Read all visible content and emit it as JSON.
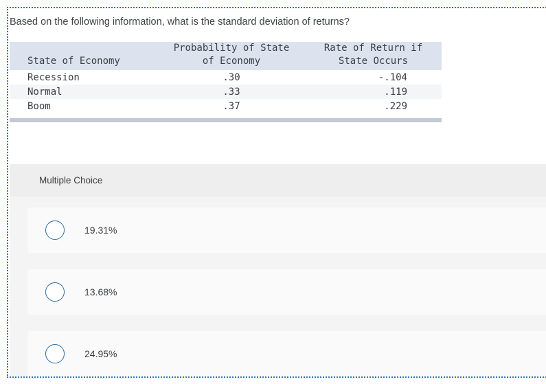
{
  "question": {
    "text": "Based on the following information, what is the standard deviation of returns?"
  },
  "table": {
    "headers": {
      "col1_line2": "State of Economy",
      "col2_line1": "Probability of State",
      "col2_line2": "of Economy",
      "col3_line1": "Rate of Return if",
      "col3_line2": "State Occurs"
    },
    "rows": [
      {
        "state": "Recession",
        "probability": ".30",
        "rate": "-.104"
      },
      {
        "state": "Normal",
        "probability": ".33",
        "rate": ".119"
      },
      {
        "state": "Boom",
        "probability": ".37",
        "rate": ".229"
      }
    ]
  },
  "multiple_choice": {
    "section_label": "Multiple Choice",
    "options": [
      {
        "label": "19.31%"
      },
      {
        "label": "13.68%"
      },
      {
        "label": "24.95%"
      }
    ]
  },
  "colors": {
    "frame_border": "#3a6fb0",
    "table_header_bg": "#dce3ef",
    "table_alt_row_bg": "#f4f5f7",
    "scrollbar": "#c2c9d5",
    "mc_band_bg": "#eeeeef",
    "mc_section_bg": "#f4f4f5",
    "option_box_bg": "#fafafa",
    "radio_border": "#2d6da4"
  }
}
